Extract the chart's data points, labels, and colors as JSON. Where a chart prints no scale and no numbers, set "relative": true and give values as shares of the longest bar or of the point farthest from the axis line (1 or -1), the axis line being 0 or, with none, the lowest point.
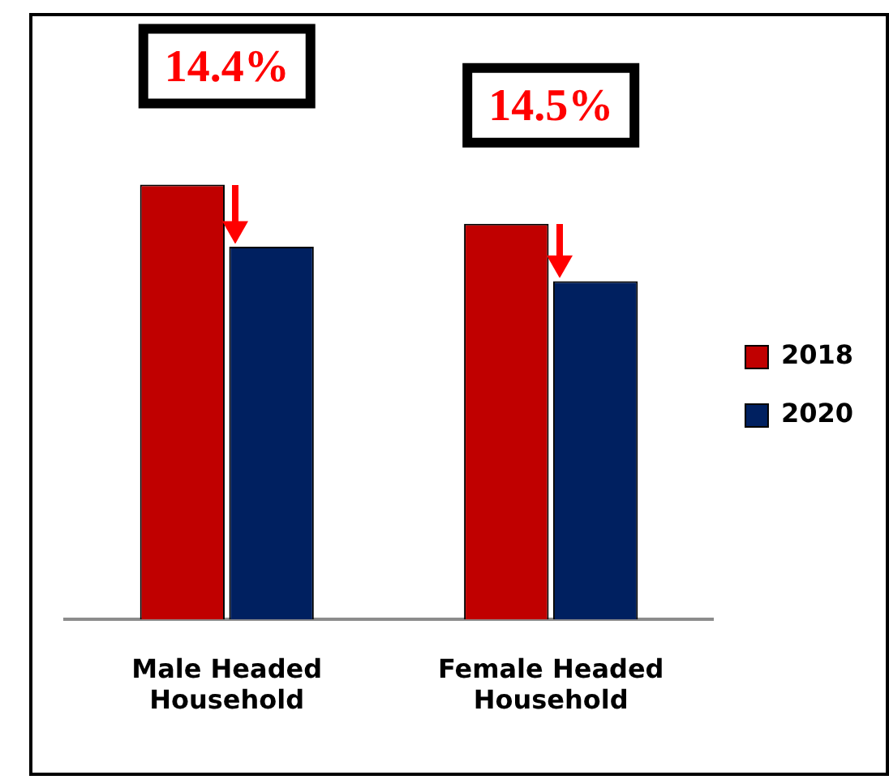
{
  "chart_data": {
    "type": "bar",
    "relative": true,
    "categories": [
      "Male Headed Household",
      "Female Headed Household"
    ],
    "series": [
      {
        "name": "2018",
        "color": "#c00000",
        "values": [
          1,
          0.91
        ]
      },
      {
        "name": "2020",
        "color": "#002060",
        "values": [
          0.857,
          0.778
        ]
      }
    ],
    "annotations": [
      "14.4%",
      "14.5%"
    ],
    "legend": "right",
    "grid": false
  }
}
